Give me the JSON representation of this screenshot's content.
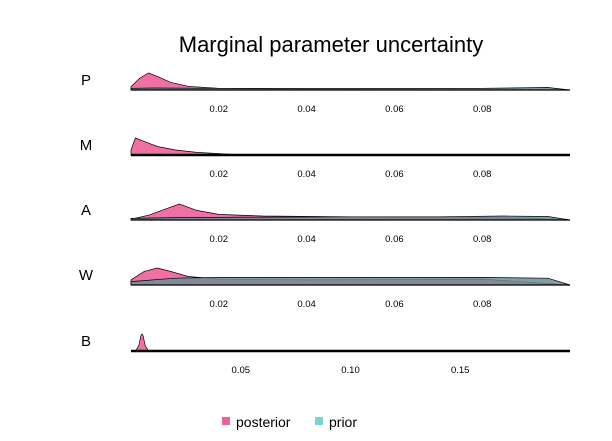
{
  "chart_data": {
    "type": "area",
    "title": "Marginal parameter uncertainty",
    "colors": {
      "posterior": "#f0609a",
      "prior": "#7dd3cf",
      "overlap": "#6e8d96"
    },
    "legend": {
      "placement": "bottom-center",
      "entries": [
        {
          "name": "posterior",
          "color": "#f0609a"
        },
        {
          "name": "prior",
          "color": "#7dd3cf"
        }
      ]
    },
    "panels": [
      {
        "label": "P",
        "xlim": [
          0,
          0.1
        ],
        "ticks": [
          0.02,
          0.04,
          0.06,
          0.08
        ],
        "tick_labels": [
          "0.02",
          "0.04",
          "0.06",
          "0.08"
        ],
        "posterior": {
          "x": [
            0.0,
            0.002,
            0.004,
            0.006,
            0.009,
            0.013,
            0.02,
            0.03,
            0.05,
            0.07,
            0.09,
            0.1
          ],
          "y": [
            0.2,
            0.7,
            1.0,
            0.8,
            0.45,
            0.22,
            0.1,
            0.06,
            0.03,
            0.02,
            0.02,
            0.0
          ]
        },
        "prior": {
          "x": [
            0.0,
            0.005,
            0.02,
            0.04,
            0.06,
            0.08,
            0.095,
            0.1
          ],
          "y": [
            0.1,
            0.12,
            0.1,
            0.09,
            0.09,
            0.1,
            0.15,
            0.0
          ]
        }
      },
      {
        "label": "M",
        "xlim": [
          0,
          0.1
        ],
        "ticks": [
          0.02,
          0.04,
          0.06,
          0.08
        ],
        "tick_labels": [
          "0.02",
          "0.04",
          "0.06",
          "0.08"
        ],
        "posterior": {
          "x": [
            0.0,
            0.001,
            0.003,
            0.006,
            0.01,
            0.015,
            0.02,
            0.025,
            0.1
          ],
          "y": [
            0.3,
            1.0,
            0.8,
            0.5,
            0.3,
            0.15,
            0.08,
            0.0,
            0.0
          ]
        },
        "prior": {
          "x": [
            0.0,
            0.1
          ],
          "y": [
            0.0,
            0.0
          ]
        }
      },
      {
        "label": "A",
        "xlim": [
          0,
          0.1
        ],
        "ticks": [
          0.02,
          0.04,
          0.06,
          0.08
        ],
        "tick_labels": [
          "0.02",
          "0.04",
          "0.06",
          "0.08"
        ],
        "posterior": {
          "x": [
            0.0,
            0.004,
            0.008,
            0.011,
            0.015,
            0.02,
            0.03,
            0.05,
            0.07,
            0.09,
            0.1
          ],
          "y": [
            0.05,
            0.3,
            0.7,
            1.0,
            0.6,
            0.35,
            0.25,
            0.2,
            0.15,
            0.12,
            0.0
          ]
        },
        "prior": {
          "x": [
            0.0,
            0.01,
            0.03,
            0.05,
            0.07,
            0.085,
            0.095,
            0.1
          ],
          "y": [
            0.1,
            0.15,
            0.18,
            0.2,
            0.2,
            0.25,
            0.22,
            0.0
          ]
        }
      },
      {
        "label": "W",
        "xlim": [
          0,
          0.1
        ],
        "ticks": [
          0.02,
          0.04,
          0.06,
          0.08
        ],
        "tick_labels": [
          "0.02",
          "0.04",
          "0.06",
          "0.08"
        ],
        "posterior": {
          "x": [
            0.0,
            0.003,
            0.006,
            0.009,
            0.013,
            0.02,
            0.04,
            0.06,
            0.08,
            0.1
          ],
          "y": [
            0.3,
            0.8,
            1.0,
            0.8,
            0.5,
            0.35,
            0.3,
            0.32,
            0.35,
            0.0
          ]
        },
        "prior": {
          "x": [
            0.0,
            0.01,
            0.02,
            0.04,
            0.06,
            0.08,
            0.095,
            0.1
          ],
          "y": [
            0.2,
            0.4,
            0.45,
            0.45,
            0.45,
            0.45,
            0.4,
            0.0
          ]
        }
      },
      {
        "label": "B",
        "xlim": [
          0,
          0.2
        ],
        "ticks": [
          0.05,
          0.1,
          0.15
        ],
        "tick_labels": [
          "0.05",
          "0.10",
          "0.15"
        ],
        "posterior": {
          "x": [
            0.0,
            0.002,
            0.0035,
            0.0045,
            0.005,
            0.0055,
            0.0065,
            0.008,
            0.2
          ],
          "y": [
            0.0,
            0.0,
            0.3,
            0.9,
            1.0,
            0.9,
            0.3,
            0.0,
            0.0
          ]
        },
        "prior": {
          "x": [
            0.0,
            0.2
          ],
          "y": [
            0.0,
            0.0
          ]
        }
      }
    ]
  }
}
